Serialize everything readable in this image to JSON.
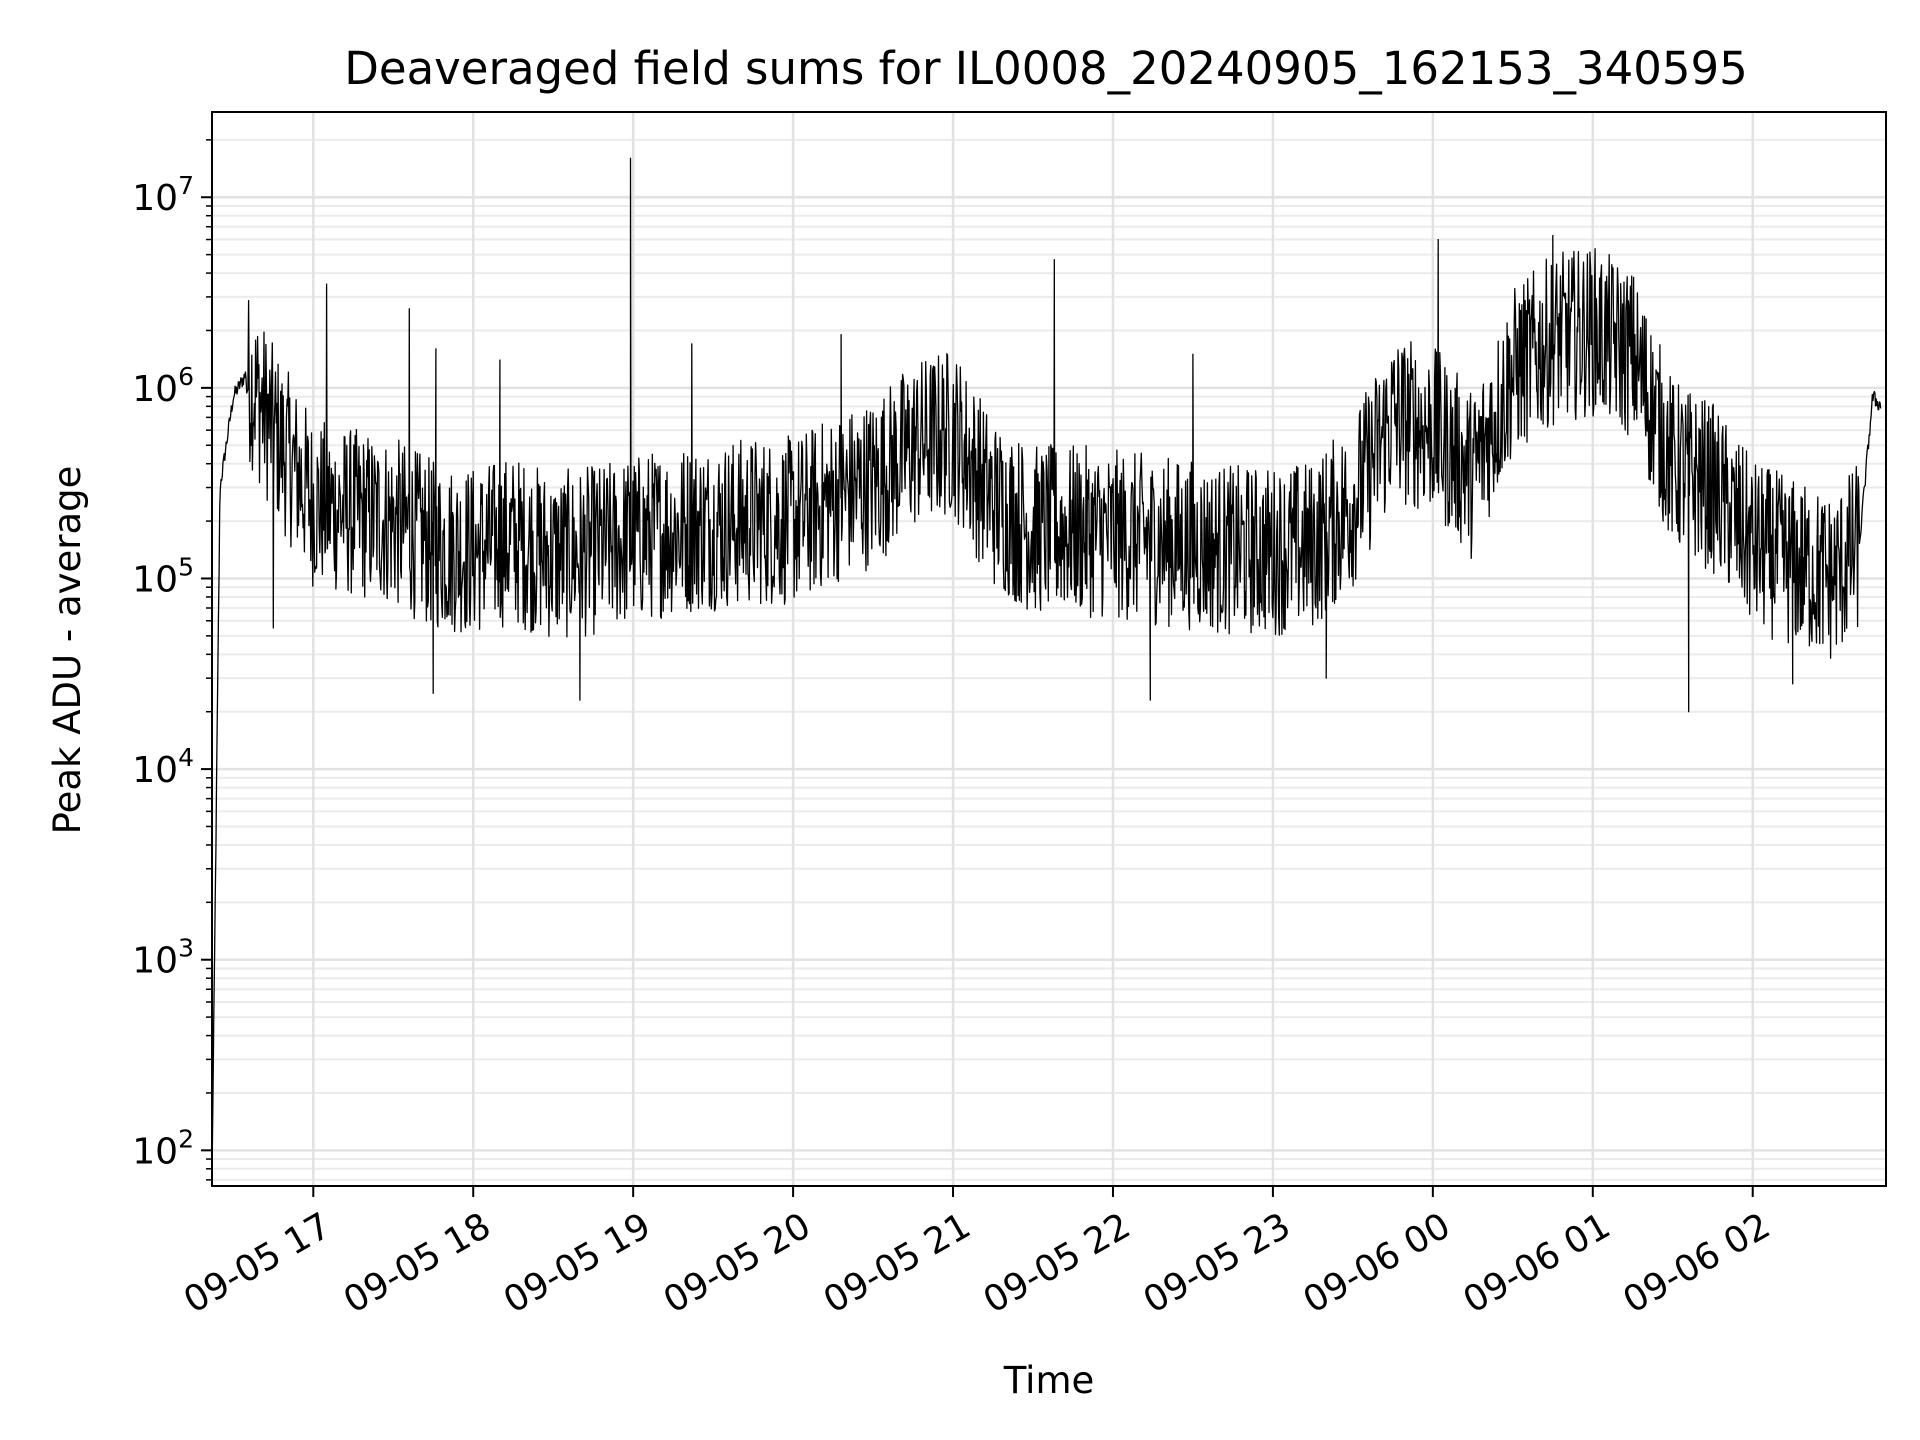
{
  "chart_data": {
    "type": "line",
    "title": "Deaveraged field sums for IL0008_20240905_162153_340595",
    "xlabel": "Time",
    "ylabel": "Peak ADU - average",
    "yscale": "log",
    "ylim": [
      65,
      28000000
    ],
    "xlim": [
      "2024-09-05 16:22",
      "2024-09-06 02:50"
    ],
    "grid": true,
    "x_ticks": [
      "09-05 17",
      "09-05 18",
      "09-05 19",
      "09-05 20",
      "09-05 21",
      "09-05 22",
      "09-05 23",
      "09-06 00",
      "09-06 01",
      "09-06 02"
    ],
    "y_ticks": [
      {
        "value": 100,
        "base": "10",
        "exp": "2"
      },
      {
        "value": 1000,
        "base": "10",
        "exp": "3"
      },
      {
        "value": 10000,
        "base": "10",
        "exp": "4"
      },
      {
        "value": 100000,
        "base": "10",
        "exp": "5"
      },
      {
        "value": 1000000,
        "base": "10",
        "exp": "6"
      },
      {
        "value": 10000000,
        "base": "10",
        "exp": "7"
      }
    ],
    "line_color": "#000000",
    "series": [
      {
        "x": [
          "2024-09-05 16:22",
          "2024-09-05 16:25",
          "2024-09-05 16:30",
          "2024-09-05 16:35",
          "2024-09-05 16:45",
          "2024-09-05 17:00",
          "2024-09-05 17:15",
          "2024-09-05 17:30",
          "2024-09-05 17:45",
          "2024-09-05 18:00",
          "2024-09-05 18:15",
          "2024-09-05 18:30",
          "2024-09-05 18:45",
          "2024-09-05 19:00",
          "2024-09-05 19:15",
          "2024-09-05 19:30",
          "2024-09-05 19:45",
          "2024-09-05 20:00",
          "2024-09-05 20:15",
          "2024-09-05 20:30",
          "2024-09-05 20:45",
          "2024-09-05 21:00",
          "2024-09-05 21:15",
          "2024-09-05 21:30",
          "2024-09-05 21:45",
          "2024-09-05 22:00",
          "2024-09-05 22:15",
          "2024-09-05 22:30",
          "2024-09-05 22:45",
          "2024-09-05 23:00",
          "2024-09-05 23:15",
          "2024-09-05 23:30",
          "2024-09-05 23:45",
          "2024-09-06 00:00",
          "2024-09-06 00:15",
          "2024-09-06 00:30",
          "2024-09-06 00:45",
          "2024-09-06 01:00",
          "2024-09-06 01:15",
          "2024-09-06 01:30",
          "2024-09-06 01:45",
          "2024-09-06 02:00",
          "2024-09-06 02:15",
          "2024-09-06 02:30",
          "2024-09-06 02:40",
          "2024-09-06 02:45",
          "2024-09-06 02:48"
        ],
        "y": [
          70,
          300000,
          900000,
          1200000,
          600000,
          250000,
          220000,
          200000,
          150000,
          140000,
          160000,
          130000,
          140000,
          160000,
          180000,
          190000,
          200000,
          200000,
          260000,
          320000,
          500000,
          600000,
          250000,
          180000,
          180000,
          170000,
          160000,
          150000,
          140000,
          140000,
          150000,
          250000,
          700000,
          600000,
          350000,
          1200000,
          1800000,
          2000000,
          1500000,
          400000,
          300000,
          150000,
          120000,
          100000,
          150000,
          900000,
          800000
        ]
      }
    ],
    "spikes": [
      {
        "x": "2024-09-05 17:05",
        "y": 3500000
      },
      {
        "x": "2024-09-05 17:36",
        "y": 2600000
      },
      {
        "x": "2024-09-05 17:46",
        "y": 1600000
      },
      {
        "x": "2024-09-05 18:10",
        "y": 1400000
      },
      {
        "x": "2024-09-05 18:59",
        "y": 16000000
      },
      {
        "x": "2024-09-05 19:22",
        "y": 1700000
      },
      {
        "x": "2024-09-05 20:18",
        "y": 1900000
      },
      {
        "x": "2024-09-05 21:38",
        "y": 4700000
      },
      {
        "x": "2024-09-05 22:30",
        "y": 1500000
      },
      {
        "x": "2024-09-06 00:02",
        "y": 6000000
      },
      {
        "x": "2024-09-06 00:45",
        "y": 6300000
      },
      {
        "x": "2024-09-06 01:20",
        "y": 2300000
      }
    ],
    "dips": [
      {
        "x": "2024-09-05 16:45",
        "y": 55000
      },
      {
        "x": "2024-09-05 17:45",
        "y": 25000
      },
      {
        "x": "2024-09-05 18:40",
        "y": 23000
      },
      {
        "x": "2024-09-05 22:14",
        "y": 23000
      },
      {
        "x": "2024-09-05 23:20",
        "y": 30000
      },
      {
        "x": "2024-09-06 01:36",
        "y": 20000
      },
      {
        "x": "2024-09-06 02:15",
        "y": 28000
      }
    ]
  }
}
